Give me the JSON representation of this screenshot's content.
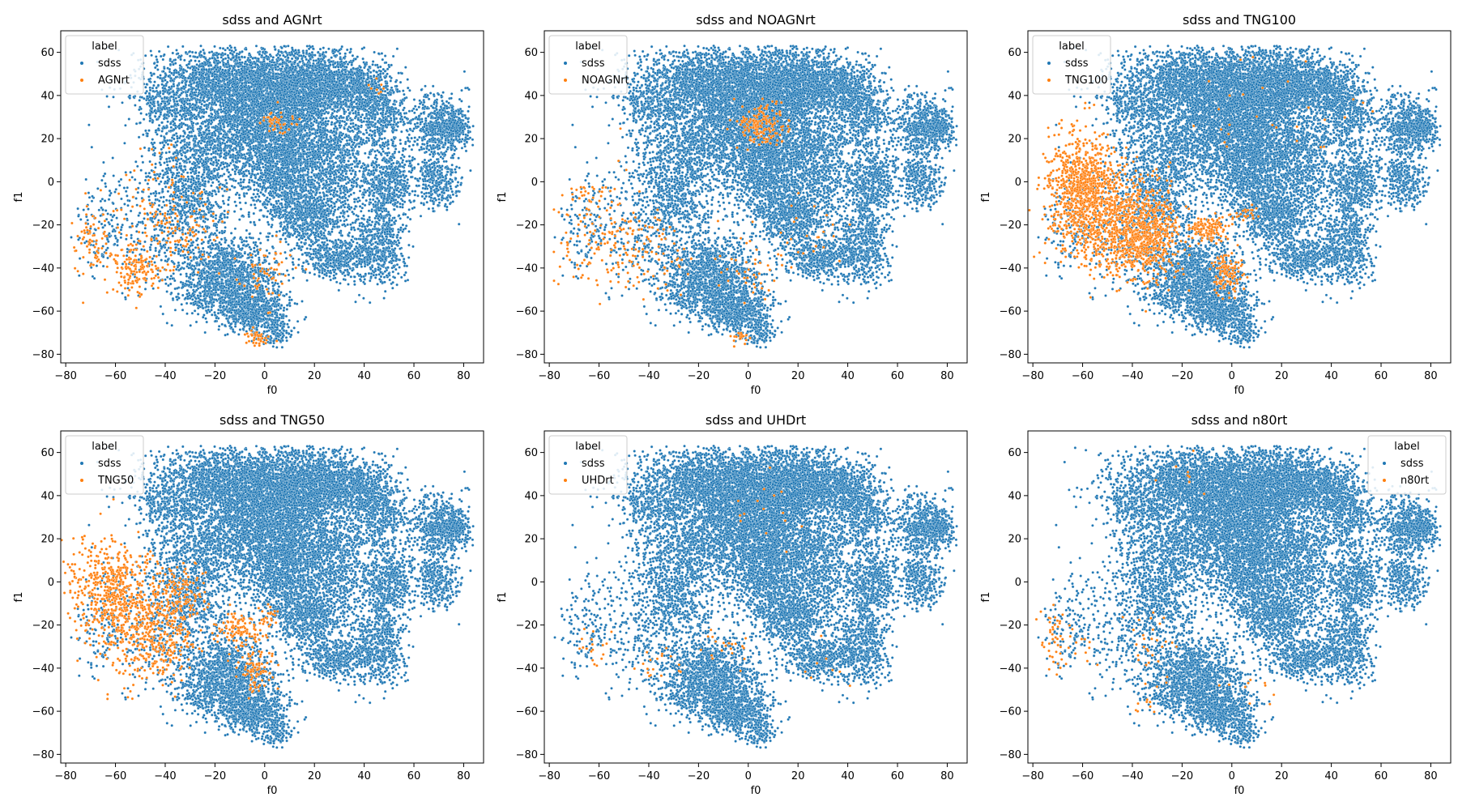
{
  "figure": {
    "background": "#ffffff"
  },
  "colors": {
    "sdss": "#1f77b4",
    "other": "#ff7f0e"
  },
  "chart_data": [
    {
      "type": "scatter",
      "title": "sdss and AGNrt",
      "xlabel": "f0",
      "ylabel": "f1",
      "xlim": [
        -82,
        88
      ],
      "ylim": [
        -84,
        70
      ],
      "xticks": [
        "-80",
        "-60",
        "-40",
        "-20",
        "0",
        "20",
        "40",
        "60",
        "80"
      ],
      "yticks": [
        "-80",
        "-60",
        "-40",
        "-20",
        "0",
        "20",
        "40",
        "60"
      ],
      "legend": {
        "title": "label",
        "placement": "top-left",
        "entries": [
          "sdss",
          "AGNrt"
        ]
      },
      "series": [
        {
          "name": "sdss",
          "color": "#1f77b4"
        },
        {
          "name": "AGNrt",
          "color": "#ff7f0e",
          "clusters": [
            {
              "cx": -70,
              "cy": -28,
              "sx": 3.5,
              "sy": 8,
              "n": 70
            },
            {
              "cx": -52,
              "cy": -40,
              "sx": 5,
              "sy": 6,
              "n": 150
            },
            {
              "cx": -42,
              "cy": -15,
              "sx": 10,
              "sy": 14,
              "n": 110
            },
            {
              "cx": -30,
              "cy": -25,
              "sx": 6,
              "sy": 8,
              "n": 50
            },
            {
              "cx": 5,
              "cy": 28,
              "sx": 4,
              "sy": 3,
              "n": 45
            },
            {
              "cx": 0,
              "cy": -42,
              "sx": 5,
              "sy": 8,
              "n": 55
            },
            {
              "cx": -3,
              "cy": -72,
              "sx": 2.5,
              "sy": 2.5,
              "n": 45
            },
            {
              "cx": 45,
              "cy": 45,
              "sx": 3,
              "sy": 3,
              "n": 8
            }
          ]
        }
      ]
    },
    {
      "type": "scatter",
      "title": "sdss and NOAGNrt",
      "xlabel": "f0",
      "ylabel": "f1",
      "xlim": [
        -82,
        88
      ],
      "ylim": [
        -84,
        70
      ],
      "xticks": [
        "-80",
        "-60",
        "-40",
        "-20",
        "0",
        "20",
        "40",
        "60",
        "80"
      ],
      "yticks": [
        "-80",
        "-60",
        "-40",
        "-20",
        "0",
        "20",
        "40",
        "60"
      ],
      "legend": {
        "title": "label",
        "placement": "top-left",
        "entries": [
          "sdss",
          "NOAGNrt"
        ]
      },
      "series": [
        {
          "name": "sdss",
          "color": "#1f77b4"
        },
        {
          "name": "NOAGNrt",
          "color": "#ff7f0e",
          "clusters": [
            {
              "cx": 5,
              "cy": 27,
              "sx": 5,
              "sy": 5,
              "n": 170
            },
            {
              "cx": -60,
              "cy": -25,
              "sx": 9,
              "sy": 13,
              "n": 120
            },
            {
              "cx": -40,
              "cy": -30,
              "sx": 8,
              "sy": 10,
              "n": 80
            },
            {
              "cx": -65,
              "cy": -5,
              "sx": 4,
              "sy": 3,
              "n": 25
            },
            {
              "cx": 0,
              "cy": -40,
              "sx": 8,
              "sy": 8,
              "n": 40
            },
            {
              "cx": -3,
              "cy": -72,
              "sx": 2,
              "sy": 2,
              "n": 20
            },
            {
              "cx": 25,
              "cy": -25,
              "sx": 10,
              "sy": 10,
              "n": 25
            }
          ]
        }
      ]
    },
    {
      "type": "scatter",
      "title": "sdss and TNG100",
      "xlabel": "f0",
      "ylabel": "f1",
      "xlim": [
        -82,
        88
      ],
      "ylim": [
        -84,
        70
      ],
      "xticks": [
        "-80",
        "-60",
        "-40",
        "-20",
        "0",
        "20",
        "40",
        "60",
        "80"
      ],
      "yticks": [
        "-80",
        "-60",
        "-40",
        "-20",
        "0",
        "20",
        "40",
        "60"
      ],
      "legend": {
        "title": "label",
        "placement": "top-left",
        "entries": [
          "sdss",
          "TNG100"
        ]
      },
      "series": [
        {
          "name": "sdss",
          "color": "#1f77b4"
        },
        {
          "name": "TNG100",
          "color": "#ff7f0e",
          "clusters": [
            {
              "cx": -60,
              "cy": -5,
              "sx": 7,
              "sy": 13,
              "n": 900
            },
            {
              "cx": -42,
              "cy": -20,
              "sx": 9,
              "sy": 12,
              "n": 800
            },
            {
              "cx": -32,
              "cy": -28,
              "sx": 6,
              "sy": 8,
              "n": 220
            },
            {
              "cx": -10,
              "cy": -22,
              "sx": 4,
              "sy": 3,
              "n": 120
            },
            {
              "cx": -2,
              "cy": -42,
              "sx": 3,
              "sy": 6,
              "n": 120
            },
            {
              "cx": 5,
              "cy": -15,
              "sx": 3,
              "sy": 2,
              "n": 25
            },
            {
              "cx": 20,
              "cy": 30,
              "sx": 20,
              "sy": 15,
              "n": 30
            }
          ]
        }
      ]
    },
    {
      "type": "scatter",
      "title": "sdss and TNG50",
      "xlabel": "f0",
      "ylabel": "f1",
      "xlim": [
        -82,
        88
      ],
      "ylim": [
        -84,
        70
      ],
      "xticks": [
        "-80",
        "-60",
        "-40",
        "-20",
        "0",
        "20",
        "40",
        "60",
        "80"
      ],
      "yticks": [
        "-80",
        "-60",
        "-40",
        "-20",
        "0",
        "20",
        "40",
        "60"
      ],
      "legend": {
        "title": "label",
        "placement": "top-left",
        "entries": [
          "sdss",
          "TNG50"
        ]
      },
      "series": [
        {
          "name": "sdss",
          "color": "#1f77b4"
        },
        {
          "name": "TNG50",
          "color": "#ff7f0e",
          "clusters": [
            {
              "cx": -62,
              "cy": -5,
              "sx": 8,
              "sy": 12,
              "n": 500
            },
            {
              "cx": -45,
              "cy": -22,
              "sx": 9,
              "sy": 12,
              "n": 450
            },
            {
              "cx": -32,
              "cy": -5,
              "sx": 5,
              "sy": 6,
              "n": 90
            },
            {
              "cx": -10,
              "cy": -22,
              "sx": 5,
              "sy": 4,
              "n": 110
            },
            {
              "cx": -3,
              "cy": -42,
              "sx": 4,
              "sy": 6,
              "n": 90
            },
            {
              "cx": 2,
              "cy": -16,
              "sx": 2,
              "sy": 2,
              "n": 20
            }
          ]
        }
      ]
    },
    {
      "type": "scatter",
      "title": "sdss and UHDrt",
      "xlabel": "f0",
      "ylabel": "f1",
      "xlim": [
        -82,
        88
      ],
      "ylim": [
        -84,
        70
      ],
      "xticks": [
        "-80",
        "-60",
        "-40",
        "-20",
        "0",
        "20",
        "40",
        "60",
        "80"
      ],
      "yticks": [
        "-80",
        "-60",
        "-40",
        "-20",
        "0",
        "20",
        "40",
        "60"
      ],
      "legend": {
        "title": "label",
        "placement": "top-left",
        "entries": [
          "sdss",
          "UHDrt"
        ]
      },
      "series": [
        {
          "name": "sdss",
          "color": "#1f77b4"
        },
        {
          "name": "UHDrt",
          "color": "#ff7f0e",
          "clusters": [
            {
              "cx": -62,
              "cy": -30,
              "sx": 5,
              "sy": 6,
              "n": 18
            },
            {
              "cx": -35,
              "cy": -38,
              "sx": 6,
              "sy": 5,
              "n": 18
            },
            {
              "cx": -10,
              "cy": -30,
              "sx": 8,
              "sy": 8,
              "n": 20
            },
            {
              "cx": 10,
              "cy": 35,
              "sx": 10,
              "sy": 8,
              "n": 15
            },
            {
              "cx": 30,
              "cy": -40,
              "sx": 5,
              "sy": 5,
              "n": 8
            }
          ]
        }
      ]
    },
    {
      "type": "scatter",
      "title": "sdss and n80rt",
      "xlabel": "f0",
      "ylabel": "f1",
      "xlim": [
        -82,
        88
      ],
      "ylim": [
        -84,
        70
      ],
      "xticks": [
        "-80",
        "-60",
        "-40",
        "-20",
        "0",
        "20",
        "40",
        "60",
        "80"
      ],
      "yticks": [
        "-80",
        "-60",
        "-40",
        "-20",
        "0",
        "20",
        "40",
        "60"
      ],
      "legend": {
        "title": "label",
        "placement": "top-right",
        "entries": [
          "sdss",
          "n80rt"
        ]
      },
      "series": [
        {
          "name": "sdss",
          "color": "#1f77b4"
        },
        {
          "name": "n80rt",
          "color": "#ff7f0e",
          "clusters": [
            {
              "cx": -72,
              "cy": -25,
              "sx": 3,
              "sy": 7,
              "n": 45
            },
            {
              "cx": -60,
              "cy": -30,
              "sx": 3,
              "sy": 5,
              "n": 10
            },
            {
              "cx": -33,
              "cy": -30,
              "sx": 5,
              "sy": 8,
              "n": 30
            },
            {
              "cx": -35,
              "cy": -58,
              "sx": 2,
              "sy": 2,
              "n": 8
            },
            {
              "cx": 8,
              "cy": -50,
              "sx": 5,
              "sy": 4,
              "n": 10
            },
            {
              "cx": -20,
              "cy": 50,
              "sx": 8,
              "sy": 8,
              "n": 8
            }
          ]
        }
      ]
    }
  ]
}
